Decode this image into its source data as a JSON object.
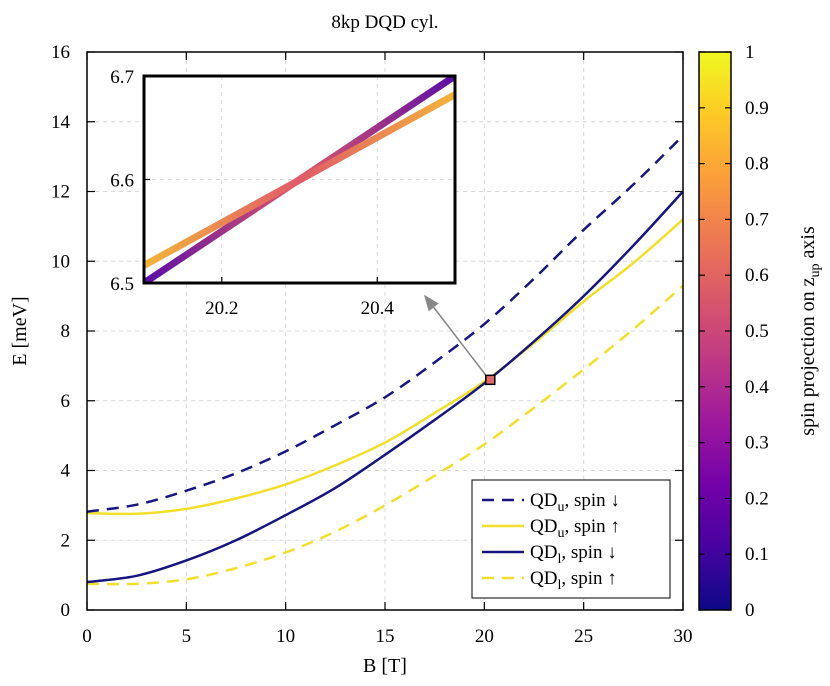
{
  "chart_data": {
    "type": "line",
    "title": "8kp DQD cyl.",
    "xlabel": "B [T]",
    "ylabel": "E [meV]",
    "xlim": [
      0,
      30
    ],
    "ylim": [
      0,
      16
    ],
    "xticks": [
      "0",
      "5",
      "10",
      "15",
      "20",
      "25",
      "30"
    ],
    "yticks": [
      "0",
      "2",
      "4",
      "6",
      "8",
      "10",
      "12",
      "14",
      "16"
    ],
    "grid": true,
    "legend_position": "bottom-right",
    "colors": {
      "dark": "#16167e",
      "yellow": "#f3de2c",
      "arrow": "#888888"
    },
    "series": [
      {
        "name": "QD_u, spin ↓",
        "label_main": "QD",
        "label_sub": "u",
        "label_rest": ",  spin ↓",
        "color": "#16167e",
        "dash": true,
        "x": [
          0,
          2.5,
          5,
          7.5,
          10,
          12.5,
          15,
          17.5,
          20,
          22.5,
          25,
          27.5,
          30
        ],
        "y": [
          2.82,
          3.02,
          3.42,
          3.92,
          4.55,
          5.3,
          6.1,
          7.1,
          8.2,
          9.5,
          10.9,
          12.2,
          13.6
        ]
      },
      {
        "name": "QD_u, spin ↑",
        "label_main": "QD",
        "label_sub": "u",
        "label_rest": ",  spin ↑",
        "color": "#f3de2c",
        "dash": false,
        "x": [
          0,
          2.5,
          5,
          7.5,
          10,
          12.5,
          15,
          17.5,
          20,
          22.5,
          25,
          27.5,
          30
        ],
        "y": [
          2.78,
          2.76,
          2.9,
          3.2,
          3.6,
          4.15,
          4.8,
          5.65,
          6.55,
          7.65,
          8.85,
          9.95,
          11.2
        ]
      },
      {
        "name": "QD_l, spin ↓",
        "label_main": "QD",
        "label_sub": "l",
        "label_rest": ",  spin ↓",
        "color": "#16167e",
        "dash": false,
        "x": [
          0,
          2.5,
          5,
          7.5,
          10,
          12.5,
          15,
          17.5,
          20,
          22.5,
          25,
          27.5,
          30
        ],
        "y": [
          0.8,
          0.98,
          1.42,
          2.0,
          2.72,
          3.5,
          4.45,
          5.45,
          6.5,
          7.7,
          9.0,
          10.45,
          12.0
        ]
      },
      {
        "name": "QD_l, spin ↑",
        "label_main": "QD",
        "label_sub": "l",
        "label_rest": ",  spin ↑",
        "color": "#f3de2c",
        "dash": true,
        "x": [
          0,
          2.5,
          5,
          7.5,
          10,
          12.5,
          15,
          17.5,
          20,
          22.5,
          25,
          27.5,
          30
        ],
        "y": [
          0.75,
          0.75,
          0.88,
          1.2,
          1.65,
          2.25,
          3.0,
          3.85,
          4.75,
          5.8,
          6.9,
          8.05,
          9.3
        ]
      }
    ],
    "inset": {
      "xlim": [
        20.1,
        20.5
      ],
      "ylim": [
        6.5,
        6.7
      ],
      "xticks": [
        "20.2",
        "20.4"
      ],
      "yticks": [
        "6.5",
        "6.6",
        "6.7"
      ],
      "lines": [
        {
          "x": [
            20.1,
            20.5
          ],
          "y": [
            6.5,
            6.7
          ],
          "color_start": "#5a0da6",
          "color_mid": "#e05a6a",
          "color_end": "#5a0da6"
        },
        {
          "x": [
            20.1,
            20.5
          ],
          "y": [
            6.517,
            6.682
          ],
          "color_start": "#f4b43a",
          "color_mid": "#e05a6a",
          "color_end": "#f4b43a"
        }
      ],
      "zoom_point": {
        "x": 20.3,
        "y": 6.6
      }
    },
    "colorbar": {
      "label": "spin projection on z",
      "label_sub": "up",
      "label_suffix": " axis",
      "range": [
        0,
        1
      ],
      "ticks": [
        "0",
        "0.1",
        "0.2",
        "0.3",
        "0.4",
        "0.5",
        "0.6",
        "0.7",
        "0.8",
        "0.9",
        "1"
      ],
      "stops": [
        "#0d0887",
        "#46039f",
        "#7201a8",
        "#9c179e",
        "#bd3786",
        "#d8576b",
        "#ed7953",
        "#fb9f3a",
        "#fdca26",
        "#f0f921"
      ]
    }
  }
}
